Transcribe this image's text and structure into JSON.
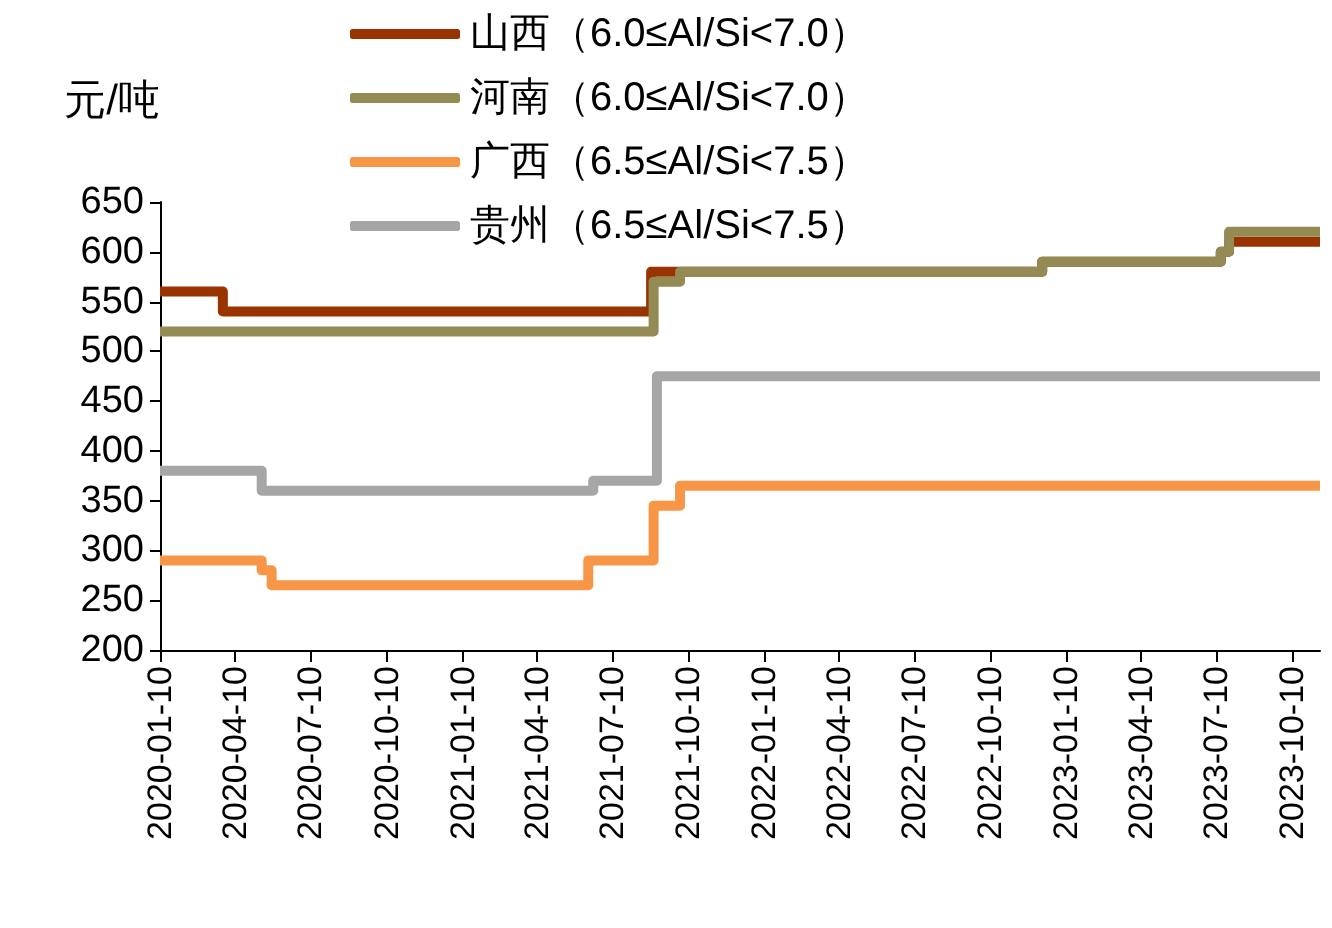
{
  "chart_data": {
    "type": "step",
    "ylabel": "元/吨",
    "legend": "top",
    "grid": false,
    "xlim": [
      "2020-01-10",
      "2023-11-13"
    ],
    "xticks": [
      "2020-01-10",
      "2020-04-10",
      "2020-07-10",
      "2020-10-10",
      "2021-01-10",
      "2021-04-10",
      "2021-07-10",
      "2021-10-10",
      "2022-01-10",
      "2022-04-10",
      "2022-07-10",
      "2022-10-10",
      "2023-01-10",
      "2023-04-10",
      "2023-07-10",
      "2023-10-10"
    ],
    "ylim": [
      200,
      650
    ],
    "yticks": [
      200,
      250,
      300,
      350,
      400,
      450,
      500,
      550,
      600,
      650
    ],
    "series": [
      {
        "name": "山西（6.0≤Al/Si<7.0）",
        "color": "#993300",
        "x": [
          "2020-01-10",
          "2020-03-26",
          "2021-08-26",
          "2022-12-12",
          "2023-07-16",
          "2023-07-26",
          "2023-11-13"
        ],
        "values": [
          560,
          540,
          580,
          590,
          600,
          610,
          610
        ]
      },
      {
        "name": "河南（6.0≤Al/Si<7.0）",
        "color": "#948a54",
        "x": [
          "2020-01-10",
          "2021-08-29",
          "2021-09-30",
          "2022-12-12",
          "2023-07-16",
          "2023-07-26",
          "2023-11-13"
        ],
        "values": [
          520,
          570,
          580,
          590,
          600,
          620,
          620
        ]
      },
      {
        "name": "广西（6.5≤Al/Si<7.5）",
        "color": "#f79646",
        "x": [
          "2020-01-10",
          "2020-05-12",
          "2020-05-24",
          "2021-06-11",
          "2021-08-29",
          "2021-09-30",
          "2023-11-13"
        ],
        "values": [
          290,
          280,
          265,
          290,
          345,
          365,
          365
        ]
      },
      {
        "name": "贵州（6.5≤Al/Si<7.5）",
        "color": "#a6a6a6",
        "x": [
          "2020-01-10",
          "2020-05-12",
          "2021-06-17",
          "2021-09-02",
          "2023-11-13"
        ],
        "values": [
          380,
          360,
          370,
          475,
          475
        ]
      }
    ]
  }
}
